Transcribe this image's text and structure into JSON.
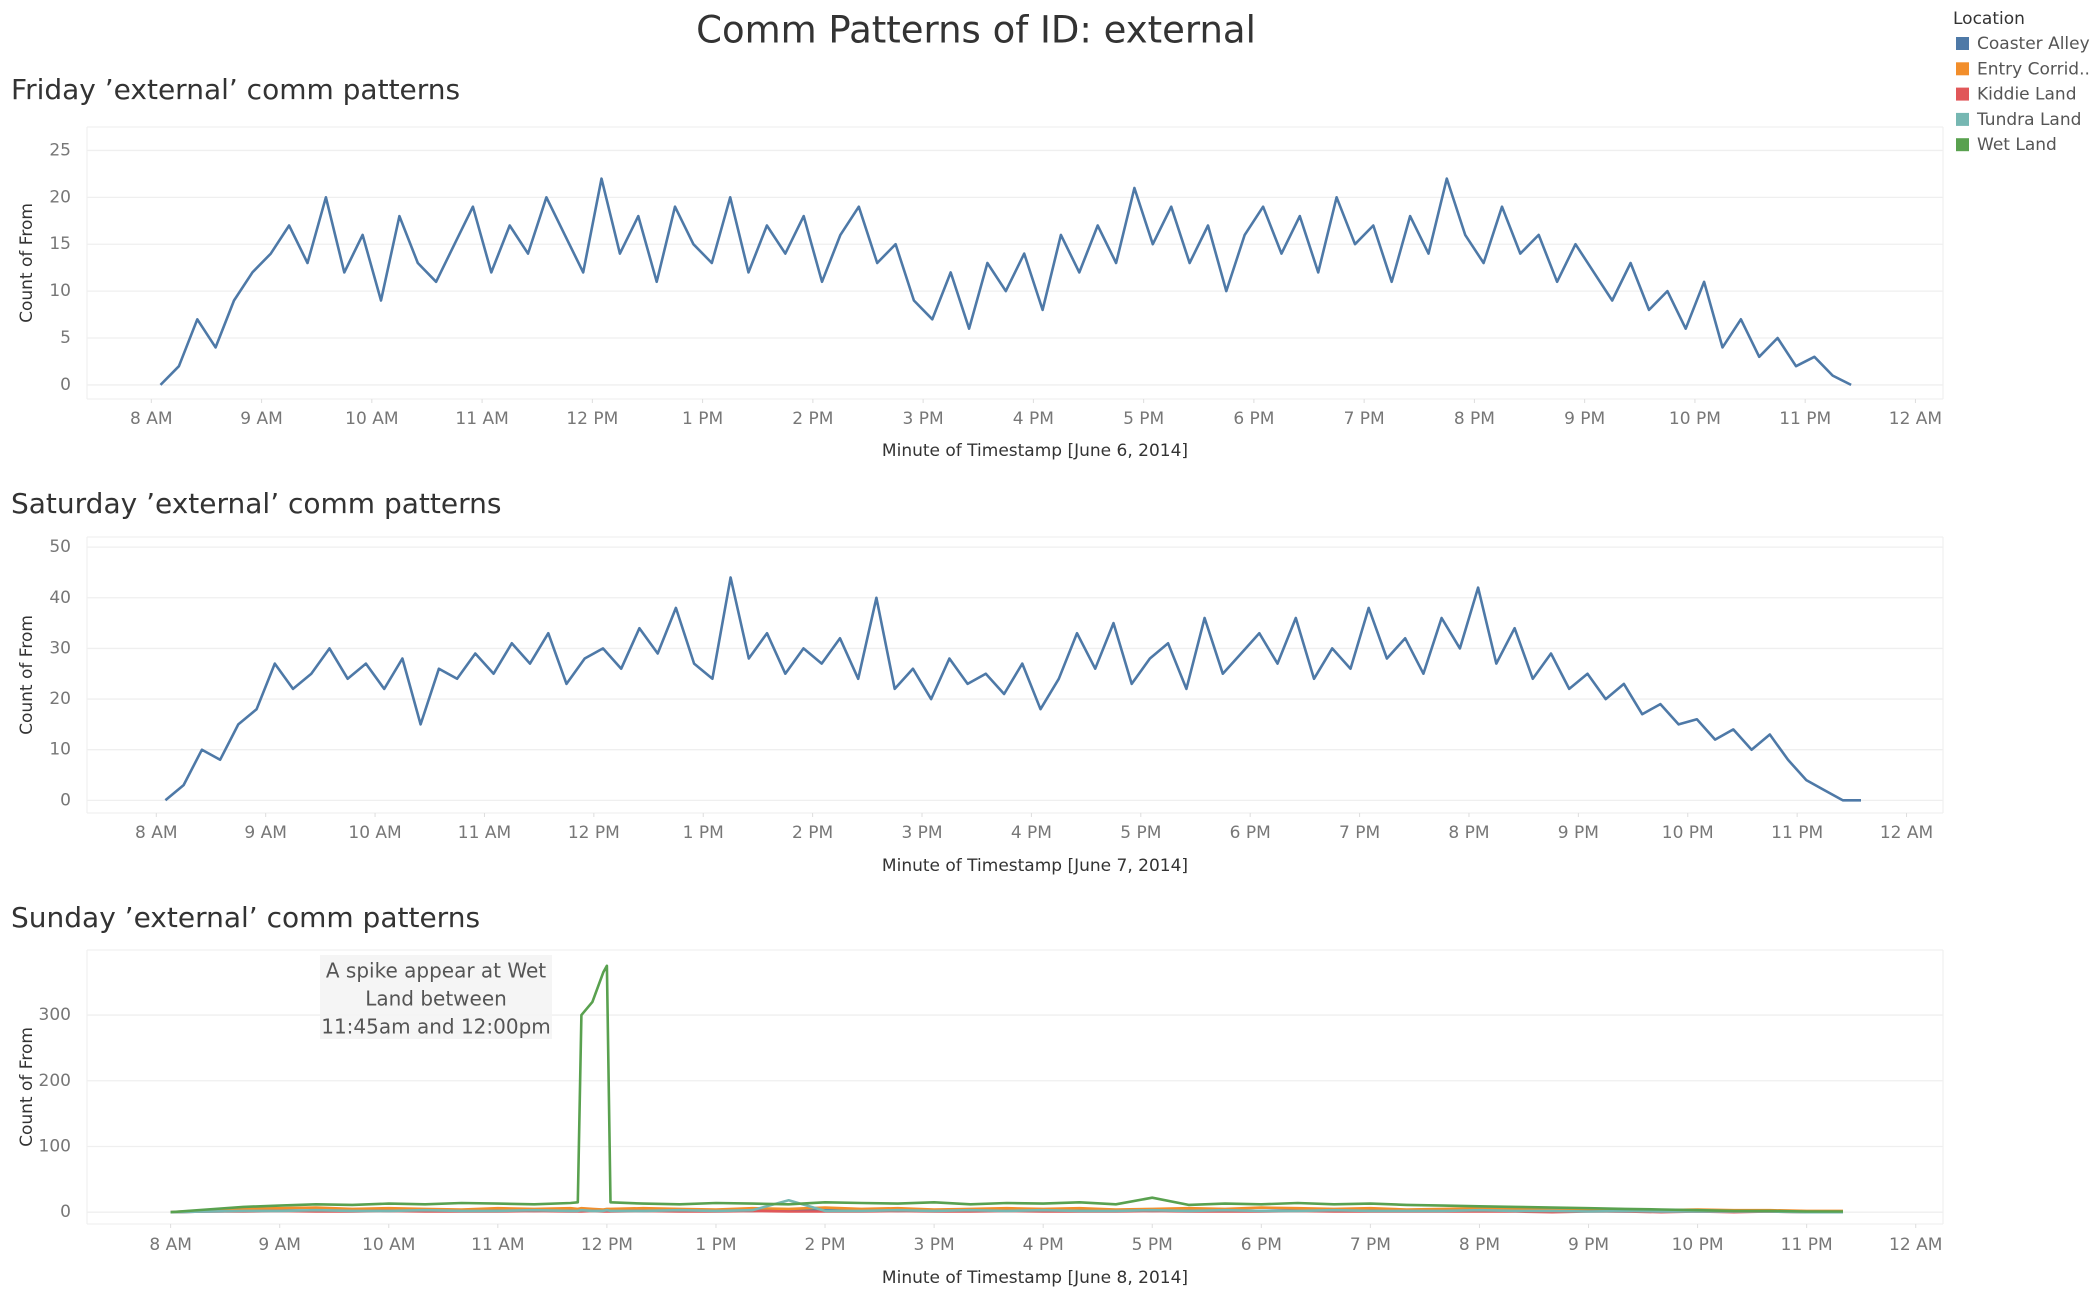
{
  "title": "Comm Patterns of ID: external",
  "legend_title": "Location",
  "chart_data": [
    {
      "type": "line",
      "subtitle": "Friday ’external’ comm patterns",
      "x_label": "Minute of Timestamp [June 6, 2014]",
      "y_label": "Count of From",
      "xlim": [
        445,
        1455
      ],
      "ylim": [
        -1.5,
        27.5
      ],
      "yticks": [
        0,
        5,
        10,
        15,
        20,
        25
      ],
      "grid": true,
      "xticks": [
        {
          "value": 480,
          "label": "8 AM"
        },
        {
          "value": 540,
          "label": "9 AM"
        },
        {
          "value": 600,
          "label": "10 AM"
        },
        {
          "value": 660,
          "label": "11 AM"
        },
        {
          "value": 720,
          "label": "12 PM"
        },
        {
          "value": 780,
          "label": "1 PM"
        },
        {
          "value": 840,
          "label": "2 PM"
        },
        {
          "value": 900,
          "label": "3 PM"
        },
        {
          "value": 960,
          "label": "4 PM"
        },
        {
          "value": 1020,
          "label": "5 PM"
        },
        {
          "value": 1080,
          "label": "6 PM"
        },
        {
          "value": 1140,
          "label": "7 PM"
        },
        {
          "value": 1200,
          "label": "8 PM"
        },
        {
          "value": 1260,
          "label": "9 PM"
        },
        {
          "value": 1320,
          "label": "10 PM"
        },
        {
          "value": 1380,
          "label": "11 PM"
        },
        {
          "value": 1440,
          "label": "12 AM"
        }
      ],
      "x": [
        485,
        495,
        505,
        515,
        525,
        535,
        545,
        555,
        565,
        575,
        585,
        595,
        605,
        615,
        625,
        635,
        645,
        655,
        665,
        675,
        685,
        695,
        705,
        715,
        725,
        735,
        745,
        755,
        765,
        775,
        785,
        795,
        805,
        815,
        825,
        835,
        845,
        855,
        865,
        875,
        885,
        895,
        905,
        915,
        925,
        935,
        945,
        955,
        965,
        975,
        985,
        995,
        1005,
        1015,
        1025,
        1035,
        1045,
        1055,
        1065,
        1075,
        1085,
        1095,
        1105,
        1115,
        1125,
        1135,
        1145,
        1155,
        1165,
        1175,
        1185,
        1195,
        1205,
        1215,
        1225,
        1235,
        1245,
        1255,
        1265,
        1275,
        1285,
        1295,
        1305,
        1315,
        1325,
        1335,
        1345,
        1355,
        1365,
        1375,
        1385,
        1395,
        1405
      ],
      "series": [
        {
          "color": "#4e79a7",
          "values": [
            0,
            2,
            7,
            4,
            9,
            12,
            14,
            17,
            13,
            20,
            12,
            16,
            9,
            18,
            13,
            11,
            15,
            19,
            12,
            17,
            14,
            20,
            16,
            12,
            22,
            14,
            18,
            11,
            19,
            15,
            13,
            20,
            12,
            17,
            14,
            18,
            11,
            16,
            19,
            13,
            15,
            9,
            7,
            12,
            6,
            13,
            10,
            14,
            8,
            16,
            12,
            17,
            13,
            21,
            15,
            19,
            13,
            17,
            10,
            16,
            19,
            14,
            18,
            12,
            20,
            15,
            17,
            11,
            18,
            14,
            22,
            16,
            13,
            19,
            14,
            16,
            11,
            15,
            12,
            9,
            13,
            8,
            10,
            6,
            11,
            4,
            7,
            3,
            5,
            2,
            3,
            1,
            0
          ]
        }
      ]
    },
    {
      "type": "line",
      "subtitle": "Saturday ’external’ comm patterns",
      "x_label": "Minute of Timestamp [June 7, 2014]",
      "y_label": "Count of From",
      "xlim": [
        442,
        1460
      ],
      "ylim": [
        -2.5,
        52
      ],
      "yticks": [
        0,
        10,
        20,
        30,
        40,
        50
      ],
      "grid": true,
      "xticks": [
        {
          "value": 480,
          "label": "8 AM"
        },
        {
          "value": 540,
          "label": "9 AM"
        },
        {
          "value": 600,
          "label": "10 AM"
        },
        {
          "value": 660,
          "label": "11 AM"
        },
        {
          "value": 720,
          "label": "12 PM"
        },
        {
          "value": 780,
          "label": "1 PM"
        },
        {
          "value": 840,
          "label": "2 PM"
        },
        {
          "value": 900,
          "label": "3 PM"
        },
        {
          "value": 960,
          "label": "4 PM"
        },
        {
          "value": 1020,
          "label": "5 PM"
        },
        {
          "value": 1080,
          "label": "6 PM"
        },
        {
          "value": 1140,
          "label": "7 PM"
        },
        {
          "value": 1200,
          "label": "8 PM"
        },
        {
          "value": 1260,
          "label": "9 PM"
        },
        {
          "value": 1320,
          "label": "10 PM"
        },
        {
          "value": 1380,
          "label": "11 PM"
        },
        {
          "value": 1440,
          "label": "12 AM"
        }
      ],
      "x": [
        485,
        495,
        505,
        515,
        525,
        535,
        545,
        555,
        565,
        575,
        585,
        595,
        605,
        615,
        625,
        635,
        645,
        655,
        665,
        675,
        685,
        695,
        705,
        715,
        725,
        735,
        745,
        755,
        765,
        775,
        785,
        795,
        805,
        815,
        825,
        835,
        845,
        855,
        865,
        875,
        885,
        895,
        905,
        915,
        925,
        935,
        945,
        955,
        965,
        975,
        985,
        995,
        1005,
        1015,
        1025,
        1035,
        1045,
        1055,
        1065,
        1075,
        1085,
        1095,
        1105,
        1115,
        1125,
        1135,
        1145,
        1155,
        1165,
        1175,
        1185,
        1195,
        1205,
        1215,
        1225,
        1235,
        1245,
        1255,
        1265,
        1275,
        1285,
        1295,
        1305,
        1315,
        1325,
        1335,
        1345,
        1355,
        1365,
        1375,
        1385,
        1395,
        1405,
        1415
      ],
      "series": [
        {
          "color": "#4e79a7",
          "values": [
            0,
            3,
            10,
            8,
            15,
            18,
            27,
            22,
            25,
            30,
            24,
            27,
            22,
            28,
            15,
            26,
            24,
            29,
            25,
            31,
            27,
            33,
            23,
            28,
            30,
            26,
            34,
            29,
            38,
            27,
            24,
            44,
            28,
            33,
            25,
            30,
            27,
            32,
            24,
            40,
            22,
            26,
            20,
            28,
            23,
            25,
            21,
            27,
            18,
            24,
            33,
            26,
            35,
            23,
            28,
            31,
            22,
            36,
            25,
            29,
            33,
            27,
            36,
            24,
            30,
            26,
            38,
            28,
            32,
            25,
            36,
            30,
            42,
            27,
            34,
            24,
            29,
            22,
            25,
            20,
            23,
            17,
            19,
            15,
            16,
            12,
            14,
            10,
            13,
            8,
            4,
            2,
            0,
            0
          ]
        }
      ]
    },
    {
      "type": "line",
      "subtitle": "Sunday ’external’ comm patterns",
      "x_label": "Minute of Timestamp [June 8, 2014]",
      "y_label": "Count of From",
      "annotation": [
        "A spike appear at Wet",
        "Land between",
        "11:45am and 12:00pm"
      ],
      "xlim": [
        434,
        1455
      ],
      "ylim": [
        -18,
        399
      ],
      "yticks": [
        0,
        100,
        200,
        300
      ],
      "grid": true,
      "xticks": [
        {
          "value": 480,
          "label": "8 AM"
        },
        {
          "value": 540,
          "label": "9 AM"
        },
        {
          "value": 600,
          "label": "10 AM"
        },
        {
          "value": 660,
          "label": "11 AM"
        },
        {
          "value": 720,
          "label": "12 PM"
        },
        {
          "value": 780,
          "label": "1 PM"
        },
        {
          "value": 840,
          "label": "2 PM"
        },
        {
          "value": 900,
          "label": "3 PM"
        },
        {
          "value": 960,
          "label": "4 PM"
        },
        {
          "value": 1020,
          "label": "5 PM"
        },
        {
          "value": 1080,
          "label": "6 PM"
        },
        {
          "value": 1140,
          "label": "7 PM"
        },
        {
          "value": 1200,
          "label": "8 PM"
        },
        {
          "value": 1260,
          "label": "9 PM"
        },
        {
          "value": 1320,
          "label": "10 PM"
        },
        {
          "value": 1380,
          "label": "11 PM"
        },
        {
          "value": 1440,
          "label": "12 AM"
        }
      ],
      "x": [
        480,
        500,
        520,
        540,
        560,
        580,
        600,
        620,
        640,
        660,
        680,
        700,
        704,
        706,
        712,
        718,
        720,
        722,
        740,
        760,
        780,
        800,
        820,
        840,
        860,
        880,
        900,
        920,
        940,
        960,
        980,
        1000,
        1020,
        1040,
        1060,
        1080,
        1100,
        1120,
        1140,
        1160,
        1180,
        1200,
        1220,
        1240,
        1260,
        1280,
        1300,
        1320,
        1340,
        1360,
        1380,
        1400
      ],
      "series": [
        {
          "name": "Coaster Alley",
          "color": "#4e79a7",
          "values": [
            0,
            1,
            2,
            3,
            2,
            3,
            2,
            3,
            2,
            3,
            2,
            3,
            3,
            2,
            3,
            2,
            3,
            3,
            2,
            3,
            3,
            2,
            4,
            3,
            3,
            2,
            3,
            4,
            3,
            2,
            3,
            3,
            2,
            3,
            3,
            2,
            3,
            2,
            3,
            3,
            2,
            3,
            2,
            2,
            2,
            1,
            2,
            1,
            1,
            1,
            1,
            0
          ]
        },
        {
          "name": "Entry Corrid..",
          "color": "#f28e2b",
          "values": [
            0,
            3,
            5,
            6,
            7,
            5,
            6,
            5,
            4,
            6,
            5,
            6,
            5,
            6,
            5,
            4,
            5,
            5,
            6,
            5,
            4,
            6,
            5,
            7,
            5,
            6,
            4,
            5,
            6,
            5,
            6,
            4,
            5,
            6,
            5,
            7,
            6,
            5,
            6,
            4,
            5,
            6,
            5,
            4,
            5,
            4,
            3,
            4,
            3,
            3,
            2,
            2
          ]
        },
        {
          "name": "Kiddie Land",
          "color": "#e15759",
          "values": [
            0,
            1,
            1,
            2,
            1,
            1,
            2,
            1,
            1,
            1,
            2,
            1,
            1,
            1,
            2,
            1,
            1,
            1,
            2,
            1,
            1,
            2,
            1,
            1,
            1,
            2,
            1,
            1,
            2,
            1,
            1,
            1,
            2,
            1,
            1,
            1,
            2,
            1,
            1,
            1,
            1,
            1,
            1,
            0,
            1,
            1,
            0,
            1,
            0,
            1,
            0,
            0
          ]
        },
        {
          "name": "Tundra Land",
          "color": "#76b7b2",
          "values": [
            0,
            1,
            2,
            2,
            3,
            2,
            2,
            3,
            2,
            2,
            3,
            2,
            2,
            3,
            2,
            2,
            3,
            2,
            2,
            3,
            2,
            3,
            18,
            2,
            2,
            3,
            2,
            3,
            2,
            3,
            2,
            2,
            3,
            2,
            3,
            2,
            2,
            3,
            2,
            2,
            2,
            3,
            2,
            2,
            1,
            2,
            1,
            1,
            1,
            1,
            0,
            0
          ]
        },
        {
          "name": "Wet Land",
          "color": "#59a14f",
          "values": [
            0,
            4,
            8,
            10,
            12,
            11,
            13,
            12,
            14,
            13,
            12,
            14,
            15,
            300,
            320,
            365,
            375,
            15,
            13,
            12,
            14,
            13,
            12,
            15,
            14,
            13,
            15,
            12,
            14,
            13,
            15,
            12,
            22,
            11,
            13,
            12,
            14,
            12,
            13,
            11,
            10,
            9,
            8,
            7,
            6,
            5,
            4,
            3,
            2,
            2,
            1,
            1
          ]
        }
      ]
    }
  ]
}
